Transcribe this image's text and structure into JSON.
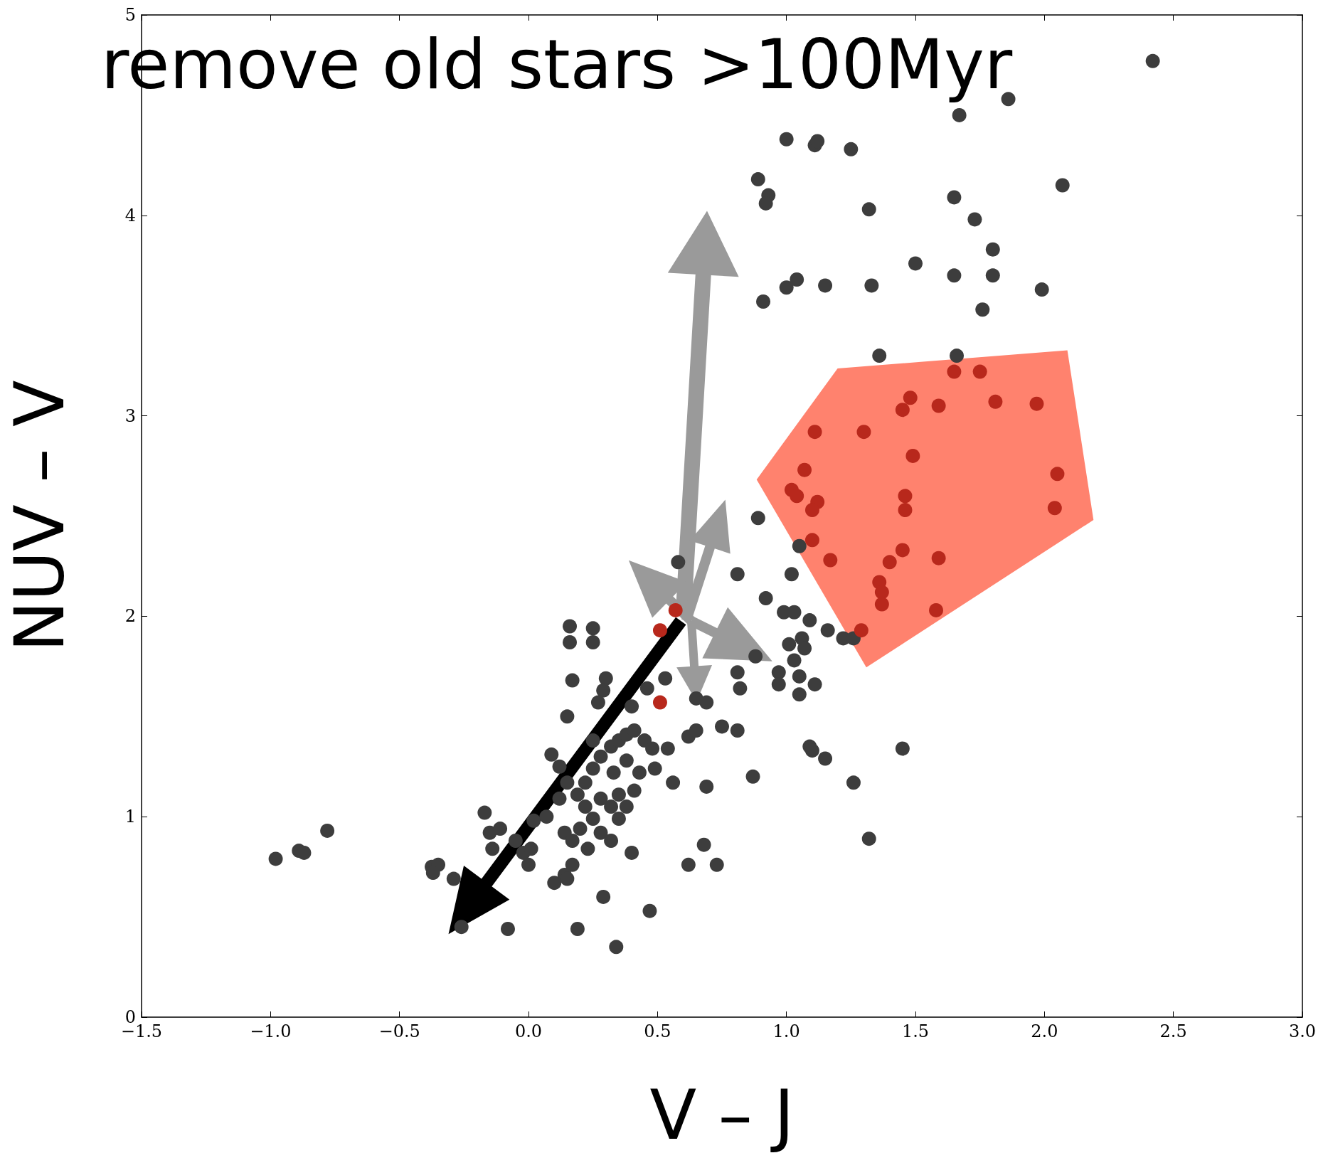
{
  "chart_data": {
    "type": "scatter",
    "title": "remove old stars >100Myr",
    "xlabel": "V – J",
    "ylabel": "NUV – V",
    "xlim": [
      -1.5,
      3.0
    ],
    "ylim": [
      0,
      5
    ],
    "xticks": [
      {
        "value": -1.5,
        "label": "−1.5"
      },
      {
        "value": -1.0,
        "label": "−1.0"
      },
      {
        "value": -0.5,
        "label": "−0.5"
      },
      {
        "value": 0,
        "label": "0.0"
      },
      {
        "value": 0.5,
        "label": "0.5"
      },
      {
        "value": 1.0,
        "label": "1.0"
      },
      {
        "value": 1.5,
        "label": "1.5"
      },
      {
        "value": 2.0,
        "label": "2.0"
      },
      {
        "value": 2.5,
        "label": "2.5"
      },
      {
        "value": 3.0,
        "label": "3.0"
      }
    ],
    "yticks": [
      0,
      1,
      2,
      3,
      4,
      5
    ],
    "grid": false,
    "marker": "circle",
    "series": [
      {
        "color": "#3d3d3d",
        "x": [
          -0.98,
          -0.89,
          -0.87,
          -0.78,
          -0.375,
          -0.35,
          -0.37,
          -0.29,
          -0.26,
          -0.17,
          -0.15,
          -0.11,
          -0.14,
          -0.08,
          -0.05,
          -0.02,
          0.01,
          0.0,
          0.02,
          0.07,
          0.1,
          0.14,
          0.17,
          0.15,
          0.19,
          0.29,
          0.34,
          0.47,
          0.16,
          0.16,
          0.25,
          0.25,
          0.17,
          0.15,
          0.3,
          0.29,
          0.089,
          0.12,
          0.15,
          0.19,
          0.22,
          0.25,
          0.28,
          0.32,
          0.35,
          0.38,
          0.41,
          0.45,
          0.48,
          0.28,
          0.32,
          0.35,
          0.22,
          0.25,
          0.28,
          0.32,
          0.35,
          0.38,
          0.41,
          0.43,
          0.49,
          0.14,
          0.17,
          0.2,
          0.23,
          0.12,
          0.4,
          0.25,
          0.33,
          0.38,
          0.27,
          0.4,
          0.46,
          0.58,
          0.54,
          0.56,
          0.62,
          0.65,
          0.53,
          0.62,
          0.68,
          0.73,
          0.69,
          0.65,
          0.69,
          0.75,
          0.81,
          0.87,
          0.81,
          0.82,
          0.81,
          0.89,
          0.92,
          0.88,
          0.97,
          0.97,
          1.03,
          0.99,
          1.03,
          1.09,
          1.01,
          1.06,
          1.07,
          1.02,
          1.05,
          1.05,
          1.05,
          1.11,
          1.16,
          1.22,
          1.26,
          1.09,
          1.1,
          1.15,
          1.26,
          1.32,
          1.45,
          1.36,
          1.66,
          0.89,
          0.93,
          0.92,
          1.0,
          1.11,
          1.12,
          1.25,
          1.32,
          0.91,
          1.0,
          1.04,
          1.15,
          1.33,
          1.5,
          1.65,
          1.65,
          1.73,
          1.8,
          1.8,
          1.76,
          1.99,
          2.07,
          1.67,
          1.86,
          2.42
        ],
        "values": [
          0.79,
          0.83,
          0.82,
          0.93,
          0.75,
          0.76,
          0.72,
          0.69,
          0.45,
          1.02,
          0.92,
          0.94,
          0.84,
          0.44,
          0.88,
          0.82,
          0.84,
          0.76,
          0.98,
          1.0,
          0.67,
          0.71,
          0.76,
          0.69,
          0.44,
          0.6,
          0.35,
          0.53,
          1.95,
          1.87,
          1.94,
          1.87,
          1.68,
          1.5,
          1.69,
          1.63,
          1.31,
          1.25,
          1.17,
          1.11,
          1.17,
          1.24,
          1.3,
          1.35,
          1.38,
          1.41,
          1.43,
          1.38,
          1.34,
          1.09,
          1.05,
          1.11,
          1.05,
          0.99,
          0.92,
          0.88,
          0.99,
          1.05,
          1.13,
          1.22,
          1.24,
          0.92,
          0.88,
          0.94,
          0.84,
          1.09,
          0.82,
          1.38,
          1.22,
          1.28,
          1.57,
          1.55,
          1.64,
          2.27,
          1.34,
          1.17,
          1.4,
          1.43,
          1.69,
          0.76,
          0.86,
          0.76,
          1.15,
          1.59,
          1.57,
          1.45,
          1.43,
          1.2,
          1.72,
          1.64,
          2.21,
          2.49,
          2.09,
          1.8,
          1.72,
          1.66,
          1.78,
          2.02,
          2.02,
          1.98,
          1.86,
          1.89,
          1.84,
          2.21,
          2.35,
          1.7,
          1.61,
          1.66,
          1.93,
          1.89,
          1.89,
          1.35,
          1.33,
          1.29,
          1.17,
          0.89,
          1.34,
          3.3,
          3.3,
          4.18,
          4.1,
          4.06,
          4.38,
          4.35,
          4.37,
          4.33,
          4.03,
          3.57,
          3.64,
          3.68,
          3.65,
          3.65,
          3.76,
          3.7,
          4.09,
          3.98,
          3.83,
          3.7,
          3.53,
          3.63,
          4.15,
          4.5,
          4.58,
          4.77
        ]
      },
      {
        "color": "#b8281c",
        "x": [
          0.51,
          0.51,
          0.57,
          1.29,
          1.07,
          1.11,
          1.02,
          1.04,
          1.12,
          1.1,
          1.1,
          1.17,
          1.3,
          1.45,
          1.48,
          1.49,
          1.46,
          1.46,
          1.45,
          1.4,
          1.36,
          1.37,
          1.37,
          1.59,
          1.65,
          1.75,
          1.59,
          1.58,
          1.81,
          1.97,
          2.05,
          2.04
        ],
        "values": [
          1.57,
          1.93,
          2.03,
          1.93,
          2.73,
          2.92,
          2.63,
          2.6,
          2.57,
          2.53,
          2.38,
          2.28,
          2.92,
          3.03,
          3.09,
          2.8,
          2.6,
          2.53,
          2.33,
          2.27,
          2.17,
          2.12,
          2.06,
          3.05,
          3.22,
          3.22,
          2.29,
          2.03,
          3.07,
          3.06,
          2.71,
          2.54
        ]
      }
    ]
  }
}
